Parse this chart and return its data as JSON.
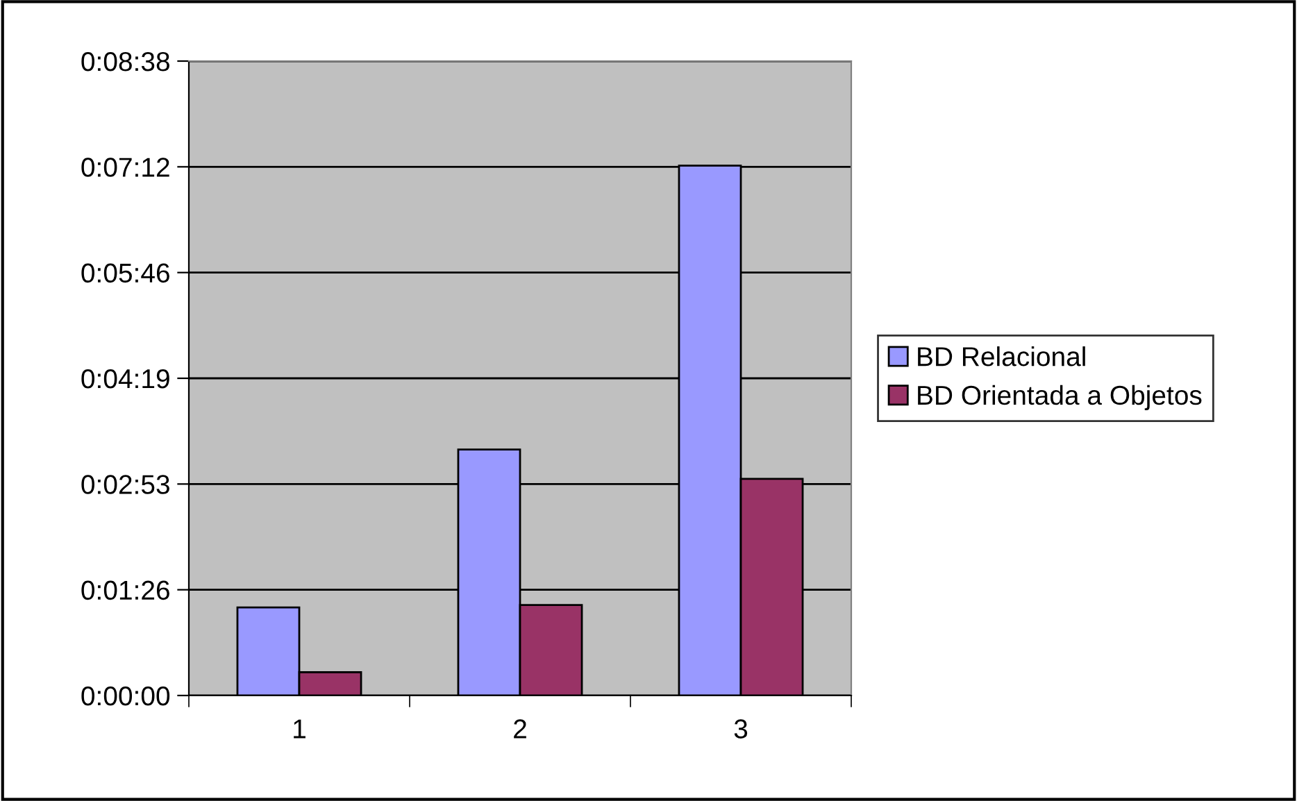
{
  "chart_data": {
    "type": "bar",
    "categories": [
      "1",
      "2",
      "3"
    ],
    "series": [
      {
        "name": "BD Relacional",
        "color": "#9999ff",
        "values": [
          72,
          201,
          433
        ]
      },
      {
        "name": "BD Orientada a Objetos",
        "color": "#993366",
        "values": [
          19,
          74,
          177
        ]
      }
    ],
    "ylim": [
      0,
      518.4
    ],
    "yticks": [
      {
        "value": 0,
        "label": "0:00:00"
      },
      {
        "value": 86.4,
        "label": "0:01:26"
      },
      {
        "value": 172.8,
        "label": "0:02:53"
      },
      {
        "value": 259.2,
        "label": "0:04:19"
      },
      {
        "value": 345.6,
        "label": "0:05:46"
      },
      {
        "value": 432,
        "label": "0:07:12"
      },
      {
        "value": 518.4,
        "label": "0:08:38"
      }
    ],
    "grid": "y",
    "legend": "right"
  }
}
